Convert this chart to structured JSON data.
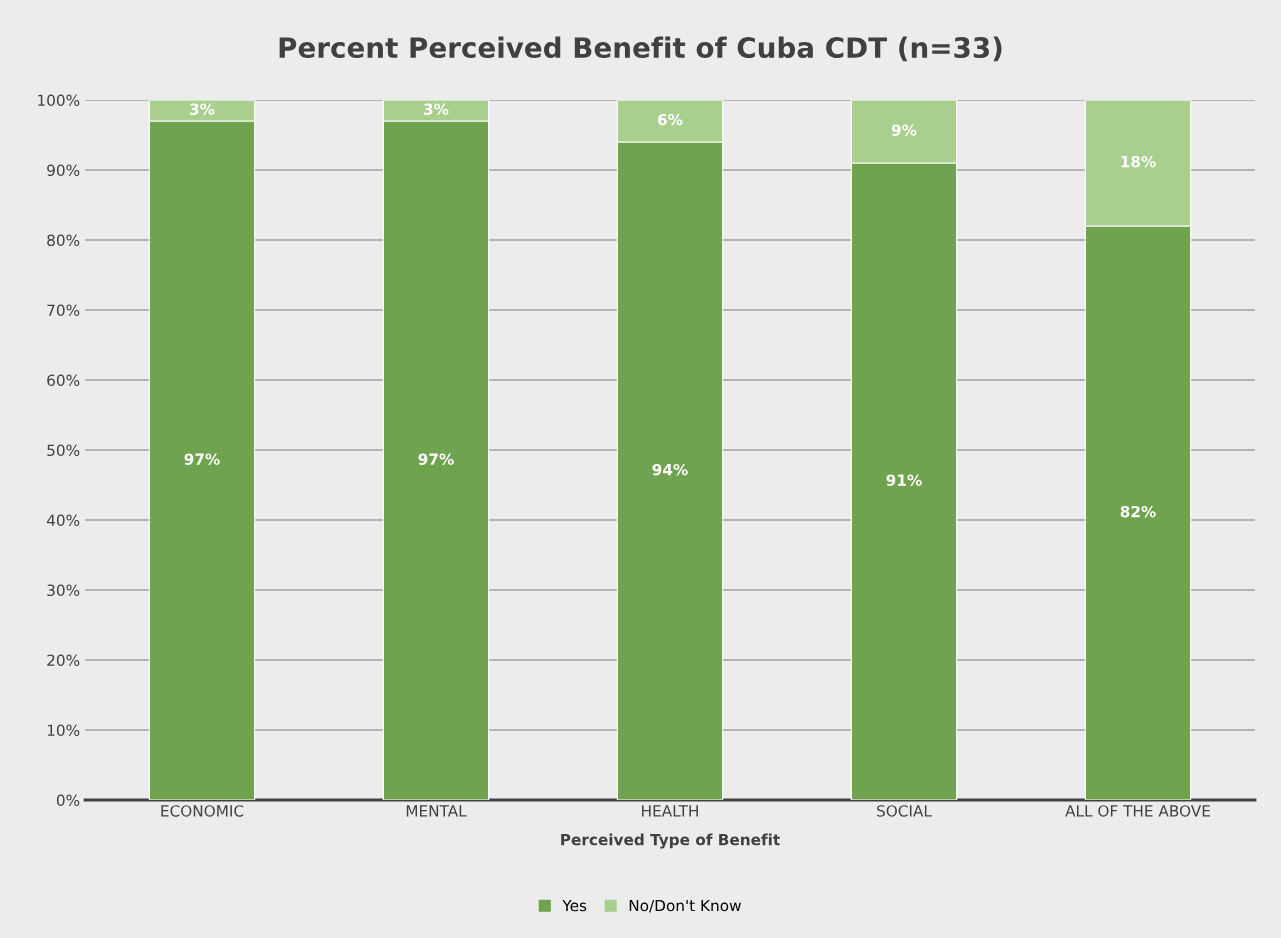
{
  "chart_data": {
    "type": "bar",
    "title": "Percent Perceived Benefit of Cuba CDT (n=33)",
    "xlabel": "Perceived Type of Benefit",
    "categories": [
      "ECONOMIC",
      "MENTAL",
      "HEALTH",
      "SOCIAL",
      "ALL OF THE ABOVE"
    ],
    "stacked": true,
    "series": [
      {
        "name": "Yes",
        "color": "#70a34f",
        "values": [
          97,
          97,
          94,
          91,
          82
        ],
        "value_labels": [
          "97%",
          "97%",
          "94%",
          "91%",
          "82%"
        ]
      },
      {
        "name": "No/Don't Know",
        "color": "#a9cf8f",
        "values": [
          3,
          3,
          6,
          9,
          18
        ],
        "value_labels": [
          "3%",
          "3%",
          "6%",
          "9%",
          "18%"
        ]
      }
    ],
    "ylim": [
      0,
      100
    ],
    "yticks": [
      {
        "value": 0,
        "label": "0%"
      },
      {
        "value": 10,
        "label": "10%"
      },
      {
        "value": 20,
        "label": "20%"
      },
      {
        "value": 30,
        "label": "30%"
      },
      {
        "value": 40,
        "label": "40%"
      },
      {
        "value": 50,
        "label": "50%"
      },
      {
        "value": 60,
        "label": "60%"
      },
      {
        "value": 70,
        "label": "70%"
      },
      {
        "value": 80,
        "label": "80%"
      },
      {
        "value": 90,
        "label": "90%"
      },
      {
        "value": 100,
        "label": "100%"
      }
    ],
    "grid": "y",
    "legend": "bottom"
  }
}
